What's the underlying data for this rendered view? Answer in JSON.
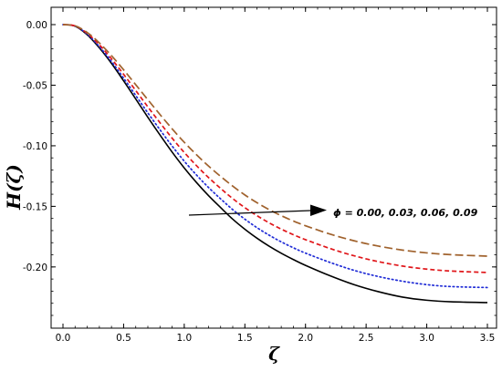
{
  "chart_data": {
    "type": "line",
    "xlabel": "ζ",
    "ylabel": "H(ζ)",
    "xlim": [
      0.0,
      3.5
    ],
    "ylim": [
      -0.24,
      0.0
    ],
    "xticks": [
      "0.0",
      "0.5",
      "1.0",
      "1.5",
      "2.0",
      "2.5",
      "3.0",
      "3.5"
    ],
    "yticks": [
      "0.00",
      "-0.05",
      "-0.10",
      "-0.15",
      "-0.20"
    ],
    "annotation": "ϕ = 0.00, 0.03, 0.06, 0.09",
    "x": [
      0.0,
      0.1,
      0.2,
      0.3,
      0.4,
      0.5,
      0.6,
      0.7,
      0.8,
      0.9,
      1.0,
      1.1,
      1.2,
      1.3,
      1.4,
      1.5,
      1.6,
      1.7,
      1.8,
      1.9,
      2.0,
      2.2,
      2.4,
      2.6,
      2.8,
      3.0,
      3.2,
      3.5
    ],
    "series": [
      {
        "style": "solid",
        "color": "#000000",
        "values": [
          0.0,
          -0.0013,
          -0.0084,
          -0.0192,
          -0.032,
          -0.0464,
          -0.0614,
          -0.0765,
          -0.0911,
          -0.1052,
          -0.1183,
          -0.1302,
          -0.1411,
          -0.151,
          -0.1606,
          -0.1689,
          -0.1763,
          -0.1829,
          -0.1887,
          -0.1939,
          -0.1987,
          -0.2072,
          -0.2146,
          -0.2204,
          -0.2249,
          -0.2275,
          -0.2288,
          -0.2294
        ]
      },
      {
        "style": "dotted",
        "color": "#1f2bd6",
        "values": [
          0.0,
          -0.0012,
          -0.0079,
          -0.0182,
          -0.0305,
          -0.0442,
          -0.0585,
          -0.0729,
          -0.0868,
          -0.1002,
          -0.1127,
          -0.124,
          -0.1344,
          -0.1438,
          -0.1527,
          -0.1606,
          -0.1676,
          -0.1738,
          -0.1793,
          -0.1842,
          -0.1886,
          -0.1962,
          -0.2028,
          -0.2079,
          -0.2118,
          -0.2146,
          -0.2162,
          -0.217
        ]
      },
      {
        "style": "dashed",
        "color": "#e0161a",
        "values": [
          0.0,
          -0.0011,
          -0.0072,
          -0.0167,
          -0.0282,
          -0.041,
          -0.0544,
          -0.0679,
          -0.081,
          -0.0937,
          -0.1055,
          -0.1163,
          -0.1262,
          -0.1352,
          -0.1436,
          -0.1511,
          -0.1577,
          -0.1636,
          -0.1688,
          -0.1734,
          -0.1775,
          -0.1847,
          -0.1908,
          -0.1956,
          -0.1993,
          -0.2018,
          -0.2034,
          -0.2046
        ]
      },
      {
        "style": "longdash",
        "color": "#a0622d",
        "values": [
          0.0,
          -0.001,
          -0.0065,
          -0.0151,
          -0.0256,
          -0.0373,
          -0.0496,
          -0.062,
          -0.0742,
          -0.086,
          -0.0971,
          -0.1073,
          -0.1167,
          -0.1253,
          -0.1333,
          -0.1406,
          -0.147,
          -0.1527,
          -0.1577,
          -0.1621,
          -0.166,
          -0.1728,
          -0.1784,
          -0.1828,
          -0.1861,
          -0.1884,
          -0.1899,
          -0.1911
        ]
      }
    ]
  }
}
